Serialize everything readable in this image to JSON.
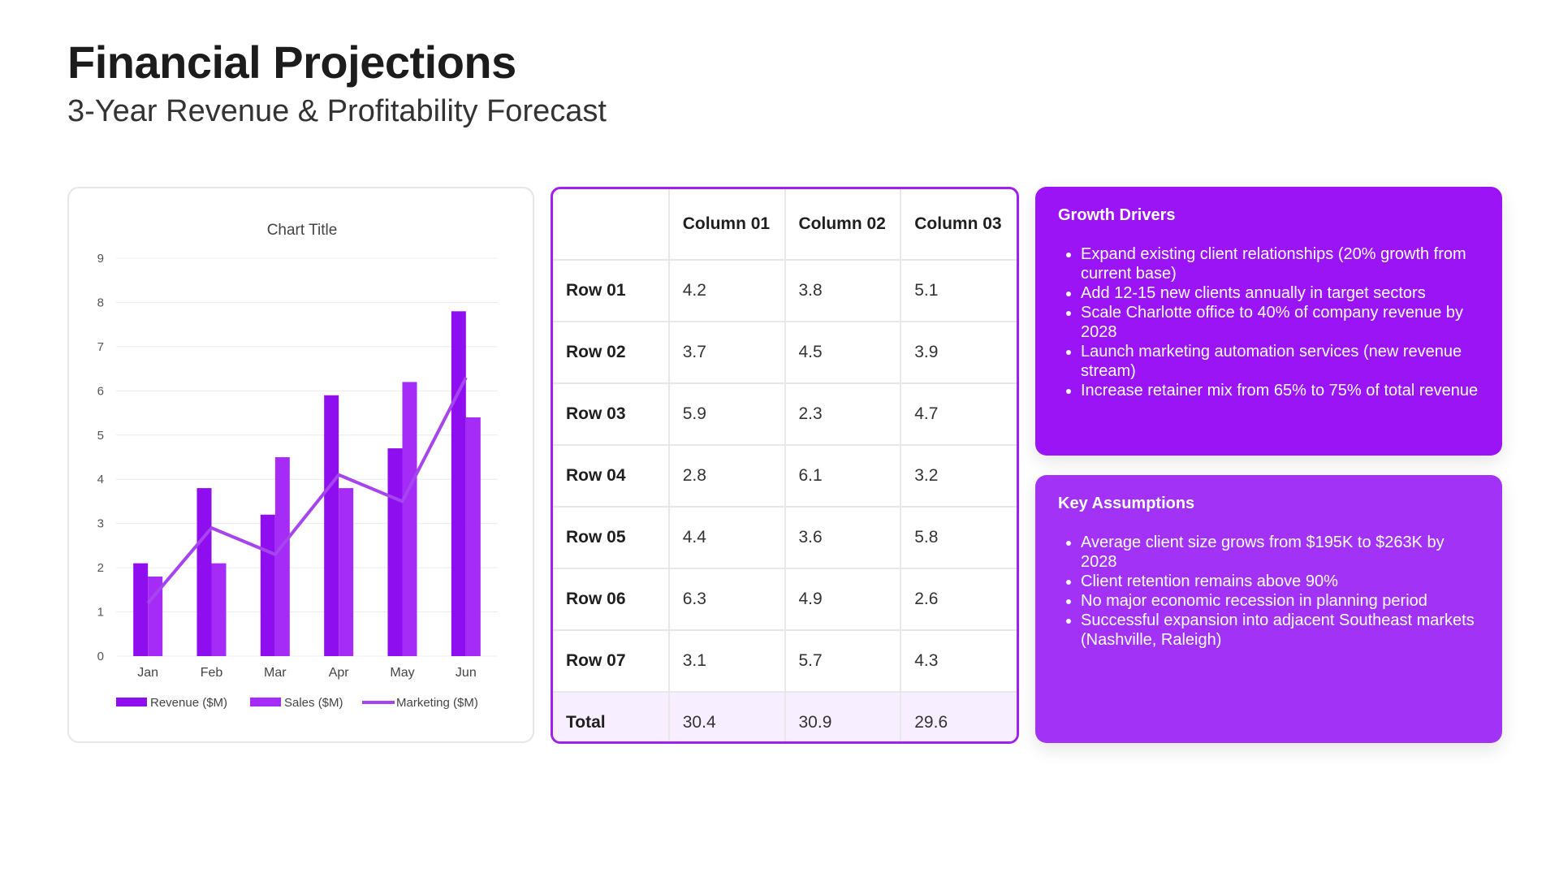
{
  "header": {
    "title": "Financial Projections",
    "subtitle": "3-Year Revenue & Profitability Forecast"
  },
  "colors": {
    "revenue": "#8f0ef0",
    "sales": "#a52cf7",
    "marketing": "#a645ef",
    "table_border": "#a020f0",
    "total_row_bg": "#f7efff"
  },
  "chart_data": {
    "type": "bar",
    "title": "Chart Title",
    "categories": [
      "Jan",
      "Feb",
      "Mar",
      "Apr",
      "May",
      "Jun"
    ],
    "ylim": [
      0,
      9
    ],
    "yticks": [
      0,
      1,
      2,
      3,
      4,
      5,
      6,
      7,
      8,
      9
    ],
    "grid": true,
    "legend_position": "bottom",
    "series": [
      {
        "name": "Revenue ($M)",
        "kind": "bar",
        "values": [
          2.1,
          3.8,
          3.2,
          5.9,
          4.7,
          7.8
        ]
      },
      {
        "name": "Sales ($M)",
        "kind": "bar",
        "values": [
          1.8,
          2.1,
          4.5,
          3.8,
          6.2,
          5.4
        ]
      },
      {
        "name": "Marketing ($M)",
        "kind": "line",
        "values": [
          1.2,
          2.9,
          2.3,
          4.1,
          3.5,
          6.3
        ]
      }
    ]
  },
  "table": {
    "columns": [
      "",
      "Column 01",
      "Column 02",
      "Column 03"
    ],
    "rows": [
      {
        "label": "Row 01",
        "values": [
          "4.2",
          "3.8",
          "5.1"
        ]
      },
      {
        "label": "Row 02",
        "values": [
          "3.7",
          "4.5",
          "3.9"
        ]
      },
      {
        "label": "Row 03",
        "values": [
          "5.9",
          "2.3",
          "4.7"
        ]
      },
      {
        "label": "Row 04",
        "values": [
          "2.8",
          "6.1",
          "3.2"
        ]
      },
      {
        "label": "Row 05",
        "values": [
          "4.4",
          "3.6",
          "5.8"
        ]
      },
      {
        "label": "Row 06",
        "values": [
          "6.3",
          "4.9",
          "2.6"
        ]
      },
      {
        "label": "Row 07",
        "values": [
          "3.1",
          "5.7",
          "4.3"
        ]
      }
    ],
    "total": {
      "label": "Total",
      "values": [
        "30.4",
        "30.9",
        "29.6"
      ]
    }
  },
  "growth_drivers": {
    "title": "Growth Drivers",
    "items": [
      "Expand existing client relationships (20% growth from current base)",
      "Add 12-15 new clients annually in target sectors",
      "Scale Charlotte office to 40% of company revenue by 2028",
      "Launch marketing automation services (new revenue stream)",
      "Increase retainer mix from 65% to 75% of total revenue"
    ]
  },
  "key_assumptions": {
    "title": "Key Assumptions",
    "items": [
      "Average client size grows from $195K to $263K by 2028",
      "Client retention remains above 90%",
      "No major economic recession in planning period",
      "Successful expansion into adjacent Southeast markets (Nashville, Raleigh)"
    ]
  }
}
